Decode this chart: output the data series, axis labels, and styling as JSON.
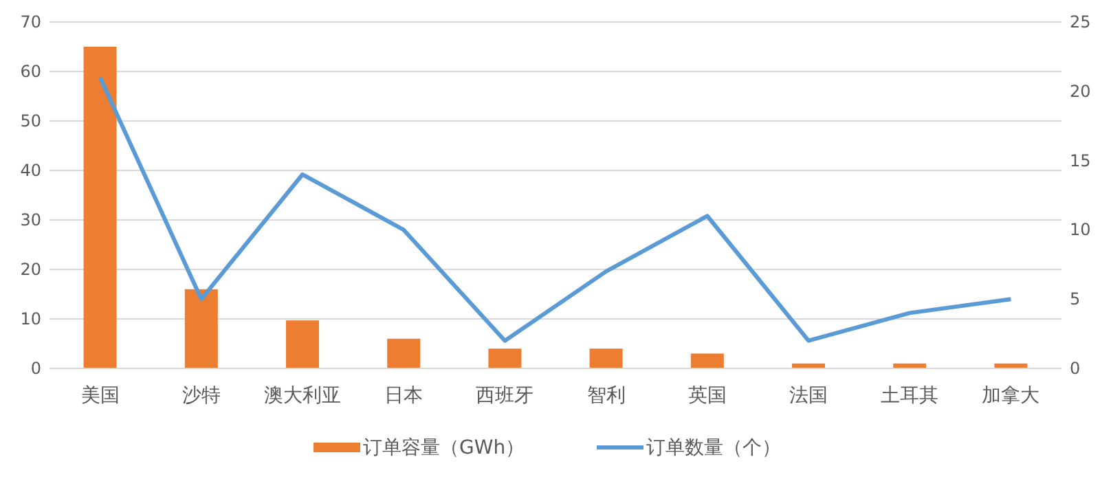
{
  "chart_data": {
    "type": "bar",
    "categories": [
      "美国",
      "沙特",
      "澳大利亚",
      "日本",
      "西班牙",
      "智利",
      "英国",
      "法国",
      "土耳其",
      "加拿大"
    ],
    "series": [
      {
        "name": "订单容量（GWh）",
        "color": "#ed7d31",
        "values": [
          65,
          16,
          9.7,
          6,
          4,
          4,
          3,
          1,
          1,
          1
        ]
      },
      {
        "name": "订单数量（个）",
        "type": "line",
        "axis": "y2",
        "color": "#5b9bd5",
        "values": [
          21,
          5,
          14,
          10,
          2,
          7,
          11,
          2,
          4,
          5
        ]
      }
    ],
    "ylim": [
      0,
      70
    ],
    "yticks": [
      0,
      10,
      20,
      30,
      40,
      50,
      60,
      70
    ],
    "y2lim": [
      0,
      25
    ],
    "y2ticks": [
      0,
      5,
      10,
      15,
      20,
      25
    ],
    "grid": "y",
    "legend": "bottom",
    "marker": "none"
  }
}
